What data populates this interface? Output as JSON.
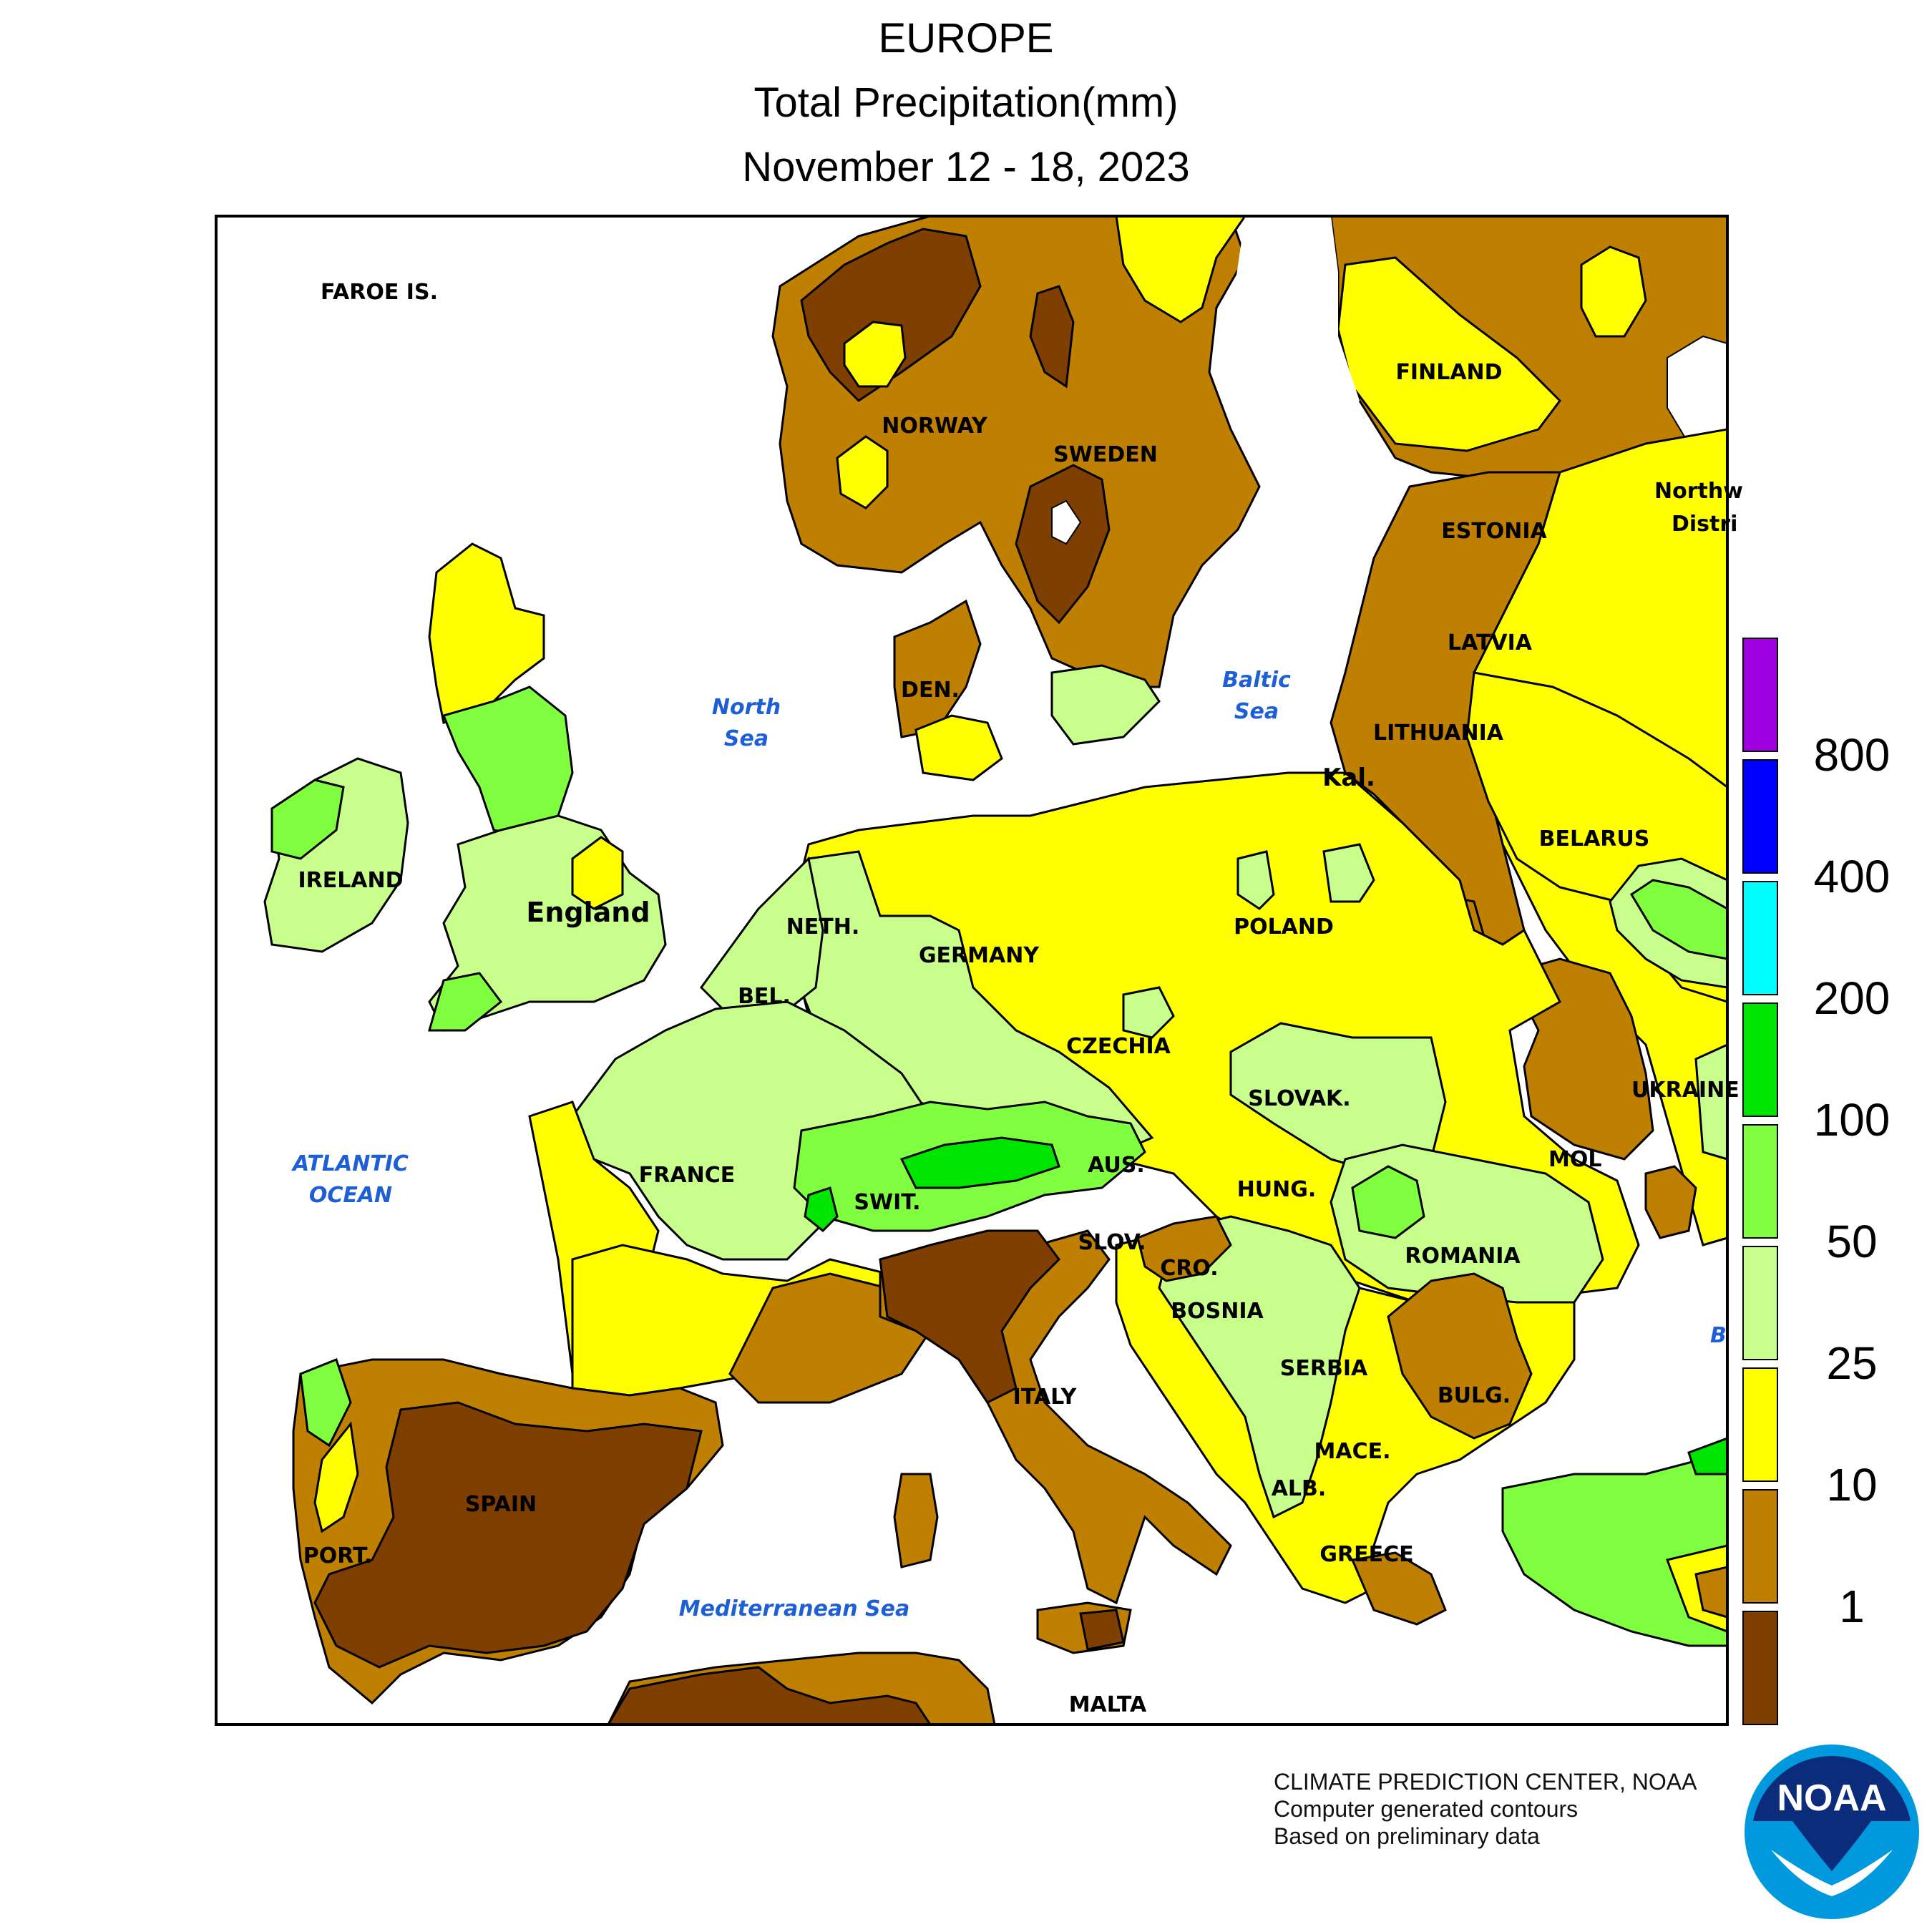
{
  "title": {
    "region": "EUROPE",
    "variable": "Total Precipitation(mm)",
    "period": "November 12 - 18, 2023"
  },
  "map": {
    "country_labels": {
      "faroe": "FAROE IS.",
      "norway": "NORWAY",
      "sweden": "SWEDEN",
      "finland": "FINLAND",
      "estonia": "ESTONIA",
      "latvia": "LATVIA",
      "lithuania": "LITHUANIA",
      "kal": "Kal.",
      "belarus": "BELARUS",
      "northwest_1": "Northw",
      "northwest_2": "Distri",
      "ireland": "IRELAND",
      "england": "England",
      "denmark": "DEN.",
      "netherlands": "NETH.",
      "germany": "GERMANY",
      "poland": "POLAND",
      "belgium": "BEL.",
      "czechia": "CZECHIA",
      "slovakia": "SLOVAK.",
      "ukraine": "UKRAINE",
      "moldova": "MOL",
      "france": "FRANCE",
      "switzerland": "SWIT.",
      "austria": "AUS.",
      "hungary": "HUNG.",
      "slovenia": "SLOV.",
      "croatia": "CRO.",
      "romania": "ROMANIA",
      "bosnia": "BOSNIA",
      "serbia": "SERBIA",
      "bulgaria": "BULG.",
      "italy": "ITALY",
      "macedonia": "MACE.",
      "albania": "ALB.",
      "greece": "GREECE",
      "spain": "SPAIN",
      "portugal": "PORT.",
      "malta": "MALTA",
      "black_sea_partial": "B"
    },
    "water_labels": {
      "north_sea_1": "North",
      "north_sea_2": "Sea",
      "baltic_1": "Baltic",
      "baltic_2": "Sea",
      "atlantic_1": "ATLANTIC",
      "atlantic_2": "OCEAN",
      "mediterranean": "Mediterranean Sea"
    },
    "water_label_color": "#1f5fd6",
    "category_colors": {
      "1-10": "#7f3f00",
      "10-25": "#bf7f00",
      "25-50": "#ffff00",
      "50-100": "#c8ff8c",
      "100-200": "#7fff40",
      "200-400": "#00e500",
      "400-800": "#00ffff",
      "800+": "#0000ff",
      "top": "#a000e0"
    }
  },
  "legend": {
    "breaks": [
      "800",
      "400",
      "200",
      "100",
      "50",
      "25",
      "10",
      "1"
    ],
    "colors_top_to_bottom": [
      "#a000e0",
      "#0000ff",
      "#00ffff",
      "#00e500",
      "#7fff40",
      "#c8ff8c",
      "#ffff00",
      "#bf7f00",
      "#7f3f00"
    ]
  },
  "credits": {
    "line1": "CLIMATE PREDICTION CENTER, NOAA",
    "line2": "Computer generated contours",
    "line3": "Based on preliminary data"
  },
  "logo": {
    "text": "NOAA"
  }
}
